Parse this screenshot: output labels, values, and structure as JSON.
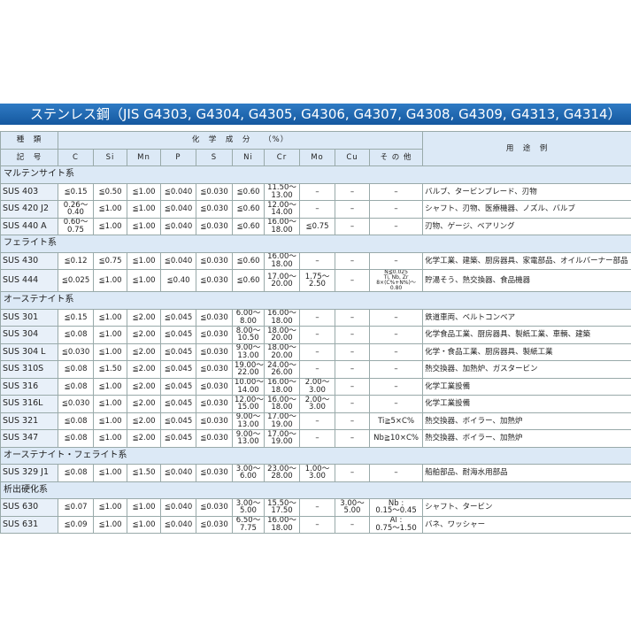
{
  "title": "ステンレス鋼（JIS G4303, G4304, G4305, G4306, G4307, G4308, G4309, G4313, G4314）",
  "header": {
    "kind": "種　類",
    "composition": "化　学　成　分　　（%）",
    "use": "用　途　例",
    "code": "記　号",
    "columns": [
      "C",
      "Si",
      "Mn",
      "P",
      "S",
      "Ni",
      "Cr",
      "Mo",
      "Cu",
      "そ の 他"
    ]
  },
  "groups": [
    {
      "name": "マルテンサイト系",
      "rows": [
        [
          "SUS 403",
          "≦0.15",
          "≦0.50",
          "≦1.00",
          "≦0.040",
          "≦0.030",
          "≦0.60",
          "11.50〜\n13.00",
          "–",
          "–",
          "–",
          "バルブ、タービンブレード、刃物"
        ],
        [
          "SUS 420 J2",
          "0.26〜\n0.40",
          "≦1.00",
          "≦1.00",
          "≦0.040",
          "≦0.030",
          "≦0.60",
          "12.00〜\n14.00",
          "–",
          "–",
          "–",
          "シャフト、刃物、医療機器、ノズル、バルブ"
        ],
        [
          "SUS 440 A",
          "0.60〜\n0.75",
          "≦1.00",
          "≦1.00",
          "≦0.040",
          "≦0.030",
          "≦0.60",
          "16.00〜\n18.00",
          "≦0.75",
          "–",
          "–",
          "刃物、ゲージ、ベアリング"
        ]
      ]
    },
    {
      "name": "フェライト系",
      "rows": [
        [
          "SUS 430",
          "≦0.12",
          "≦0.75",
          "≦1.00",
          "≦0.040",
          "≦0.030",
          "≦0.60",
          "16.00〜\n18.00",
          "–",
          "–",
          "–",
          "化学工業、建築、厨房器具、家電部品、オイルバーナー部品"
        ],
        [
          "SUS 444",
          "≦0.025",
          "≦1.00",
          "≦1.00",
          "≦0.40",
          "≦0.030",
          "≦0.60",
          "17.00〜\n20.00",
          "1.75〜\n2.50",
          "–",
          "N≦0.025\nTi, Nb, Zr\n8×(C%+N%)〜0.80",
          "貯湯そう、熱交換器、食品機器"
        ]
      ]
    },
    {
      "name": "オーステナイト系",
      "rows": [
        [
          "SUS 301",
          "≦0.15",
          "≦1.00",
          "≦2.00",
          "≦0.045",
          "≦0.030",
          "6.00〜\n8.00",
          "16.00〜\n18.00",
          "–",
          "–",
          "–",
          "鉄道車両、ベルトコンベア"
        ],
        [
          "SUS 304",
          "≦0.08",
          "≦1.00",
          "≦2.00",
          "≦0.045",
          "≦0.030",
          "8.00〜\n10.50",
          "18.00〜\n20.00",
          "–",
          "–",
          "–",
          "化学食品工業、厨房器具、製紙工業、車輌、建築"
        ],
        [
          "SUS 304 L",
          "≦0.030",
          "≦1.00",
          "≦2.00",
          "≦0.045",
          "≦0.030",
          "9.00〜\n13.00",
          "18.00〜\n20.00",
          "–",
          "–",
          "–",
          "化学・食品工業、厨房器具、製紙工業"
        ],
        [
          "SUS 310S",
          "≦0.08",
          "≦1.50",
          "≦2.00",
          "≦0.045",
          "≦0.030",
          "19.00〜\n22.00",
          "24.00〜\n26.00",
          "–",
          "–",
          "–",
          "熱交換器、加熱炉、ガスタービン"
        ],
        [
          "SUS 316",
          "≦0.08",
          "≦1.00",
          "≦2.00",
          "≦0.045",
          "≦0.030",
          "10.00〜\n14.00",
          "16.00〜\n18.00",
          "2.00〜\n3.00",
          "–",
          "–",
          "化学工業設備"
        ],
        [
          "SUS 316L",
          "≦0.030",
          "≦1.00",
          "≦2.00",
          "≦0.045",
          "≦0.030",
          "12.00〜\n15.00",
          "16.00〜\n18.00",
          "2.00〜\n3.00",
          "–",
          "–",
          "化学工業設備"
        ],
        [
          "SUS 321",
          "≦0.08",
          "≦1.00",
          "≦2.00",
          "≦0.045",
          "≦0.030",
          "9.00〜\n13.00",
          "17.00〜\n19.00",
          "–",
          "–",
          "Ti≧5×C%",
          "熱交換器、ボイラー、加熱炉"
        ],
        [
          "SUS 347",
          "≦0.08",
          "≦1.00",
          "≦2.00",
          "≦0.045",
          "≦0.030",
          "9.00〜\n13.00",
          "17.00〜\n19.00",
          "–",
          "–",
          "Nb≧10×C%",
          "熱交換器、ボイラー、加熱炉"
        ]
      ]
    },
    {
      "name": "オーステナイト・フェライト系",
      "rows": [
        [
          "SUS 329 J1",
          "≦0.08",
          "≦1.00",
          "≦1.50",
          "≦0.040",
          "≦0.030",
          "3.00〜\n6.00",
          "23.00〜\n28.00",
          "1.00〜\n3.00",
          "–",
          "–",
          "船舶部品、耐海水用部品"
        ]
      ]
    },
    {
      "name": "析出硬化系",
      "rows": [
        [
          "SUS 630",
          "≦0.07",
          "≦1.00",
          "≦1.00",
          "≦0.040",
          "≦0.030",
          "3.00〜\n5.00",
          "15.50〜\n17.50",
          "–",
          "3.00〜\n5.00",
          "Nb :\n0.15〜0.45",
          "シャフト、タービン"
        ],
        [
          "SUS 631",
          "≦0.09",
          "≦1.00",
          "≦1.00",
          "≦0.040",
          "≦0.030",
          "6.50〜\n7.75",
          "16.00〜\n18.00",
          "–",
          "–",
          "Al :\n0.75〜1.50",
          "バネ、ワッシャー"
        ]
      ]
    }
  ]
}
